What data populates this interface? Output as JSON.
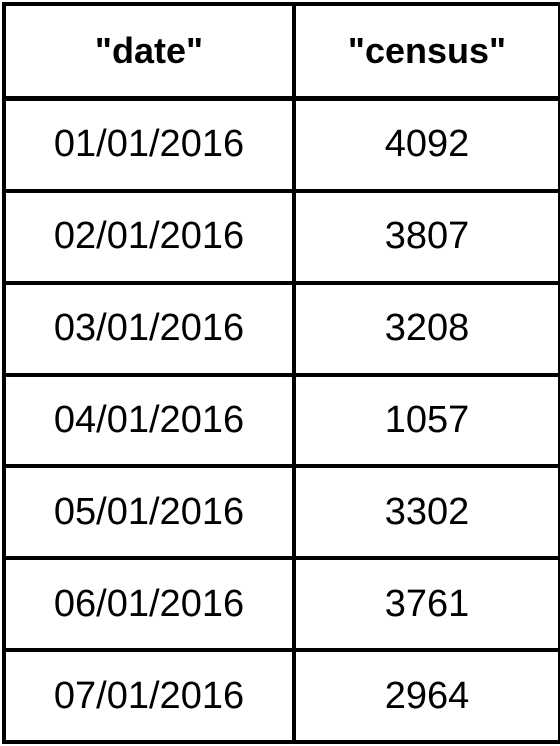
{
  "table": {
    "headers": [
      "\"date\"",
      "\"census\""
    ],
    "rows": [
      [
        "01/01/2016",
        "4092"
      ],
      [
        "02/01/2016",
        "3807"
      ],
      [
        "03/01/2016",
        "3208"
      ],
      [
        "04/01/2016",
        "1057"
      ],
      [
        "05/01/2016",
        "3302"
      ],
      [
        "06/01/2016",
        "3761"
      ],
      [
        "07/01/2016",
        "2964"
      ]
    ]
  },
  "colors": {
    "border": "#000000",
    "text": "#000000",
    "background": "#ffffff"
  }
}
